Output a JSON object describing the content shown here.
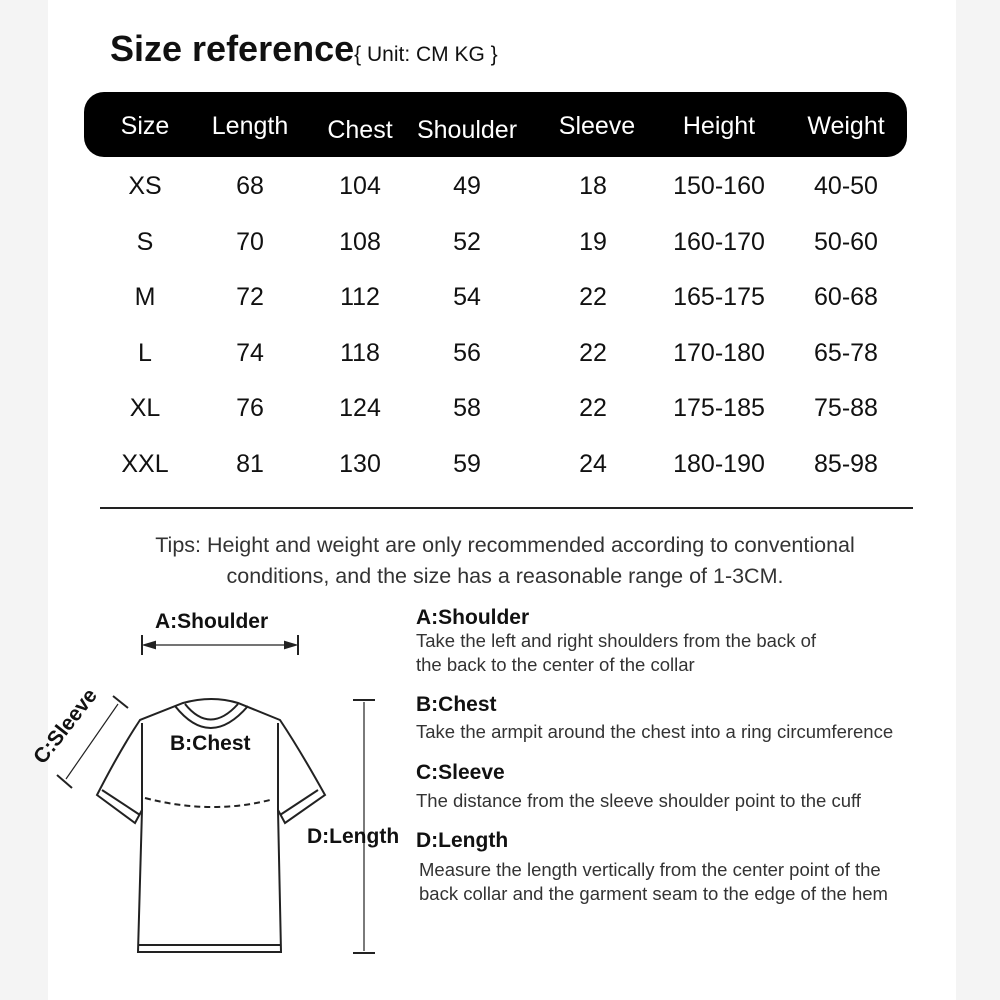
{
  "title": "Size reference",
  "unit": "{ Unit: CM KG }",
  "columns": [
    "Size",
    "Length",
    "Chest",
    "Shoulder",
    "Sleeve",
    "Height",
    "Weight"
  ],
  "rows": [
    [
      "XS",
      "68",
      "104",
      "49",
      "18",
      "150-160",
      "40-50"
    ],
    [
      "S",
      "70",
      "108",
      "52",
      "19",
      "160-170",
      "50-60"
    ],
    [
      "M",
      "72",
      "112",
      "54",
      "22",
      "165-175",
      "60-68"
    ],
    [
      "L",
      "74",
      "118",
      "56",
      "22",
      "170-180",
      "65-78"
    ],
    [
      "XL",
      "76",
      "124",
      "58",
      "22",
      "175-185",
      "75-88"
    ],
    [
      "XXL",
      "81",
      "130",
      "59",
      "24",
      "180-190",
      "85-98"
    ]
  ],
  "tips": [
    "Tips: Height and weight are only recommended according to conventional",
    "conditions, and the size has a reasonable range of 1-3CM."
  ],
  "diagram": {
    "shoulder": "A:Shoulder",
    "chest": "B:Chest",
    "sleeve": "C:Sleeve",
    "length": "D:Length"
  },
  "definitions": [
    {
      "term": "A:Shoulder",
      "lines": [
        "Take the left and right shoulders from the back of",
        "the back to the center of the collar"
      ]
    },
    {
      "term": "B:Chest",
      "lines": [
        "Take the armpit around the chest into a ring circumference"
      ]
    },
    {
      "term": "C:Sleeve",
      "lines": [
        "The distance from the sleeve shoulder point to the cuff"
      ]
    },
    {
      "term": "D:Length",
      "lines": [
        "Measure the length vertically from the center point of the",
        "back collar and the garment seam to the edge of the hem"
      ]
    }
  ]
}
